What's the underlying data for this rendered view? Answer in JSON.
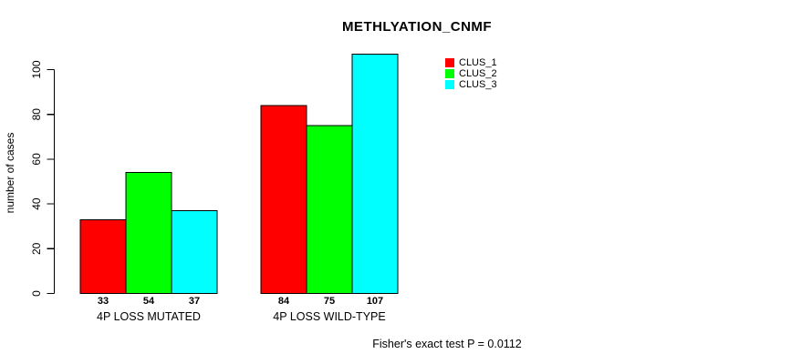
{
  "chart_data": {
    "type": "bar",
    "title": "METHLYATION_CNMF",
    "ylabel": "number of cases",
    "xlabel": "",
    "categories": [
      "4P LOSS MUTATED",
      "4P LOSS WILD-TYPE"
    ],
    "series": [
      {
        "name": "CLUS_1",
        "color": "#ff0000",
        "values": [
          33,
          84
        ]
      },
      {
        "name": "CLUS_2",
        "color": "#00ff00",
        "values": [
          54,
          75
        ]
      },
      {
        "name": "CLUS_3",
        "color": "#00ffff",
        "values": [
          37,
          107
        ]
      }
    ],
    "yticks": [
      0,
      20,
      40,
      60,
      80,
      100
    ],
    "ylim": [
      0,
      107
    ],
    "grid": false,
    "legend_position": "top-right",
    "bar_border_color": "#000000",
    "show_value_labels": true,
    "annotation": "Fisher's exact test P = 0.0112"
  }
}
